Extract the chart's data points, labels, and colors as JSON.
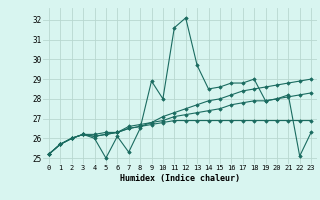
{
  "title": "",
  "xlabel": "Humidex (Indice chaleur)",
  "ylabel": "",
  "background_color": "#d8f5f0",
  "grid_color": "#b8d8d0",
  "line_color": "#1a6b60",
  "xlim": [
    -0.5,
    23.5
  ],
  "ylim": [
    24.7,
    32.6
  ],
  "xticks": [
    0,
    1,
    2,
    3,
    4,
    5,
    6,
    7,
    8,
    9,
    10,
    11,
    12,
    13,
    14,
    15,
    16,
    17,
    18,
    19,
    20,
    21,
    22,
    23
  ],
  "yticks": [
    25,
    26,
    27,
    28,
    29,
    30,
    31,
    32
  ],
  "series": [
    [
      25.2,
      25.7,
      26.0,
      26.2,
      26.0,
      25.0,
      26.1,
      25.3,
      26.5,
      28.9,
      28.0,
      31.6,
      32.1,
      29.7,
      28.5,
      28.6,
      28.8,
      28.8,
      29.0,
      27.9,
      28.0,
      28.2,
      25.1,
      26.3
    ],
    [
      25.2,
      25.7,
      26.0,
      26.2,
      26.2,
      26.3,
      26.3,
      26.6,
      26.7,
      26.8,
      27.1,
      27.3,
      27.5,
      27.7,
      27.9,
      28.0,
      28.2,
      28.4,
      28.5,
      28.6,
      28.7,
      28.8,
      28.9,
      29.0
    ],
    [
      25.2,
      25.7,
      26.0,
      26.2,
      26.1,
      26.2,
      26.3,
      26.5,
      26.6,
      26.8,
      26.9,
      27.1,
      27.2,
      27.3,
      27.4,
      27.5,
      27.7,
      27.8,
      27.9,
      27.9,
      28.0,
      28.1,
      28.2,
      28.3
    ],
    [
      25.2,
      25.7,
      26.0,
      26.2,
      26.1,
      26.2,
      26.3,
      26.5,
      26.6,
      26.7,
      26.8,
      26.9,
      26.9,
      26.9,
      26.9,
      26.9,
      26.9,
      26.9,
      26.9,
      26.9,
      26.9,
      26.9,
      26.9,
      26.9
    ]
  ]
}
